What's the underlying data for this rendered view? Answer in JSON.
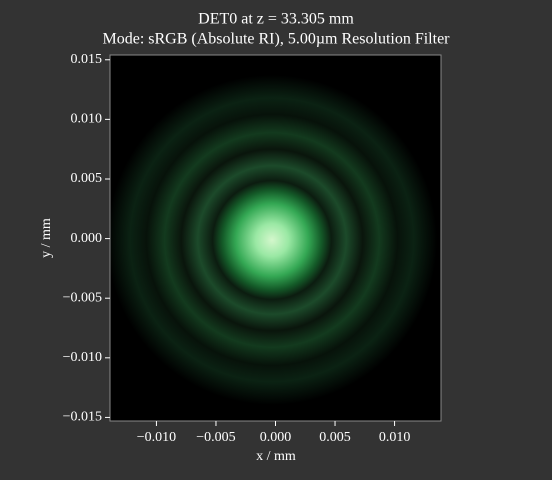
{
  "chart_data": {
    "type": "image",
    "title": "DET0 at z = 33.305 mm",
    "subtitle": "Mode: sRGB (Absolute RI), 5.00µm Resolution Filter",
    "xlabel": "x / mm",
    "ylabel": "y / mm",
    "xlim": [
      -0.0139,
      0.0139
    ],
    "ylim": [
      -0.0153,
      0.0154
    ],
    "xticks": [
      {
        "value": -0.01,
        "label": "−0.010"
      },
      {
        "value": -0.005,
        "label": "−0.005"
      },
      {
        "value": 0,
        "label": "0.000"
      },
      {
        "value": 0.005,
        "label": "0.005"
      },
      {
        "value": 0.01,
        "label": "0.010"
      }
    ],
    "yticks": [
      {
        "value": -0.015,
        "label": "−0.015"
      },
      {
        "value": -0.01,
        "label": "−0.010"
      },
      {
        "value": -0.005,
        "label": "−0.005"
      },
      {
        "value": 0,
        "label": "0.000"
      },
      {
        "value": 0.005,
        "label": "0.005"
      },
      {
        "value": 0.01,
        "label": "0.010"
      },
      {
        "value": 0.015,
        "label": "0.015"
      }
    ]
  }
}
